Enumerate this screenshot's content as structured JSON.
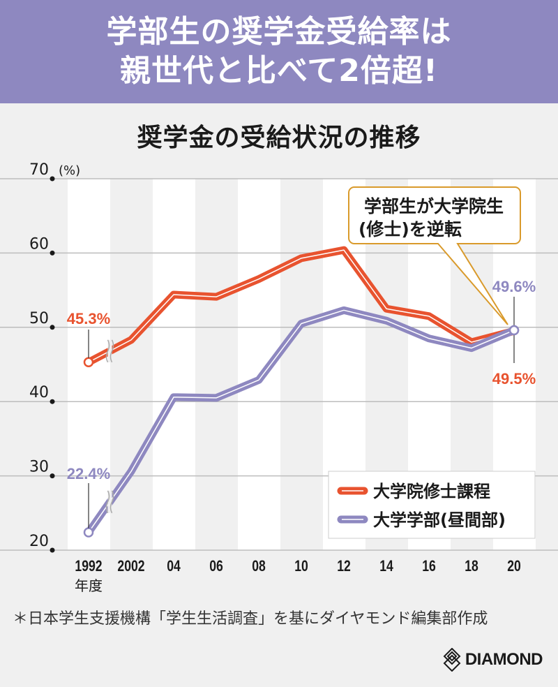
{
  "banner": {
    "line1": "学部生の奨学金受給率は",
    "line2": "親世代と比べて2倍超!"
  },
  "chart_data": {
    "type": "line",
    "title": "奨学金の受給状況の推移",
    "ylabel": "(%)",
    "xlabel": "年度",
    "ylim": [
      20,
      70
    ],
    "yticks": [
      20,
      30,
      40,
      50,
      60,
      70
    ],
    "grid": true,
    "categories": [
      "1992",
      "2002",
      "04",
      "06",
      "08",
      "10",
      "12",
      "14",
      "16",
      "18",
      "20"
    ],
    "axis_break": "between 1992 and 2002",
    "series": [
      {
        "name": "大学院修士課程",
        "color": "#e8532f",
        "values": [
          45.3,
          48.3,
          54.4,
          54.1,
          56.5,
          59.3,
          60.4,
          52.5,
          51.5,
          48.0,
          49.5
        ]
      },
      {
        "name": "大学学部(昼間部)",
        "color": "#8e88c0",
        "values": [
          22.4,
          30.6,
          40.6,
          40.5,
          42.9,
          50.5,
          52.3,
          50.9,
          48.5,
          47.2,
          49.6
        ]
      }
    ],
    "annotations": [
      {
        "text": "45.3%",
        "series": 0,
        "index": 0
      },
      {
        "text": "22.4%",
        "series": 1,
        "index": 0
      },
      {
        "text": "49.6%",
        "series": 1,
        "index": 10
      },
      {
        "text": "49.5%",
        "series": 0,
        "index": 10
      }
    ],
    "callout": {
      "line1": "学部生が大学院生",
      "line2": "(修士)を逆転",
      "border_color": "#d99a2b"
    },
    "legend": {
      "placement": "bottom-right",
      "items": [
        "大学院修士課程",
        "大学学部(昼間部)"
      ]
    }
  },
  "source": "＊日本学生支援機構「学生生活調査」を基にダイヤモンド編集部作成",
  "logo": {
    "text": "DIAMOND",
    "icon": "diamond-logo-icon"
  }
}
